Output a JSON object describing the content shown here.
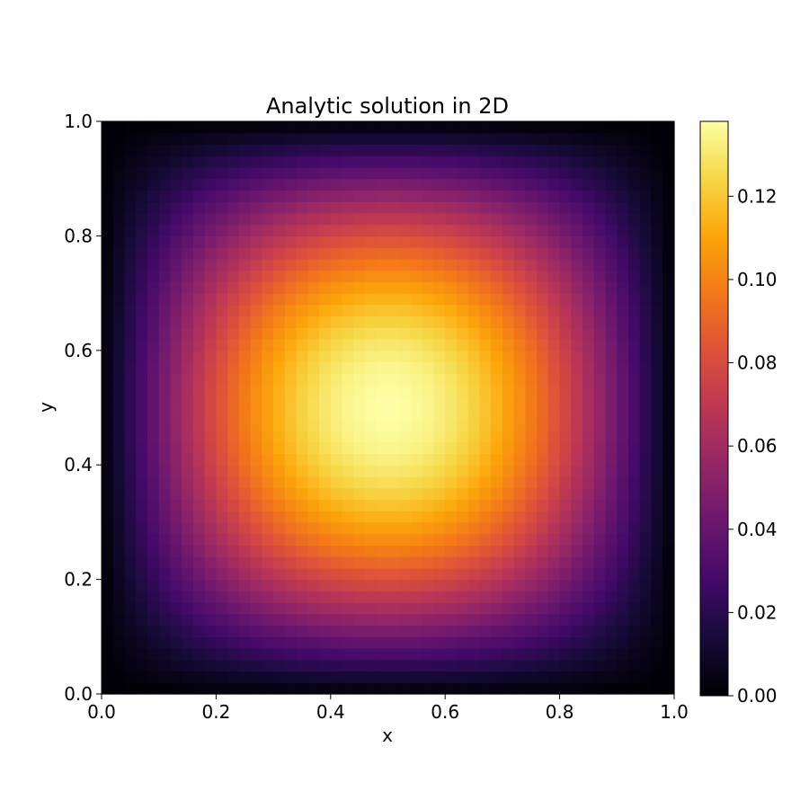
{
  "chart_data": {
    "type": "heatmap",
    "title": "Analytic solution in 2D",
    "xlabel": "x",
    "ylabel": "y",
    "xlim": [
      0.0,
      1.0
    ],
    "ylim": [
      0.0,
      1.0
    ],
    "x_ticks": [
      "0.0",
      "0.2",
      "0.4",
      "0.6",
      "0.8",
      "1.0"
    ],
    "y_ticks": [
      "0.0",
      "0.2",
      "0.4",
      "0.6",
      "0.8",
      "1.0"
    ],
    "grid_resolution": 50,
    "function": "sin(pi*x)*sin(pi*y)*peak",
    "peak_value": 0.138,
    "colormap": "inferno",
    "grid": false,
    "colorbar": {
      "vmin": 0.0,
      "vmax": 0.138,
      "ticks": [
        "0.00",
        "0.02",
        "0.04",
        "0.06",
        "0.08",
        "0.10",
        "0.12"
      ],
      "tick_values": [
        0.0,
        0.02,
        0.04,
        0.06,
        0.08,
        0.1,
        0.12
      ]
    },
    "colors": {
      "low": "#000004",
      "mid_low": "#420a68",
      "mid": "#932667",
      "mid_high": "#dd513a",
      "high_mid": "#fca50a",
      "high": "#fcffa4"
    }
  }
}
